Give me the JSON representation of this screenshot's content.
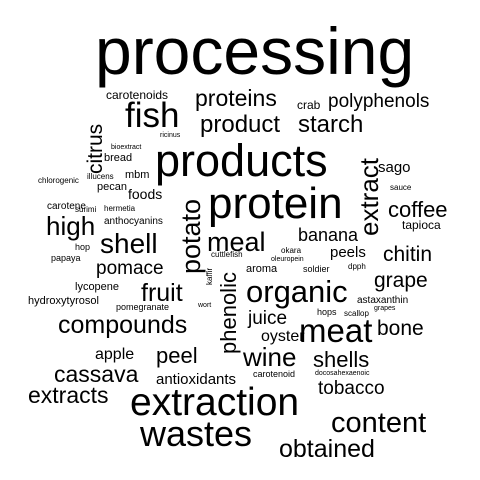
{
  "cloud": {
    "words": {
      "processing": "processing",
      "products": "products",
      "protein": "protein",
      "extraction": "extraction",
      "wastes": "wastes",
      "fish": "fish",
      "meat": "meat",
      "organic": "organic",
      "content": "content",
      "compounds": "compounds",
      "product": "product",
      "proteins": "proteins",
      "starch": "starch",
      "polyphenols": "polyphenols",
      "shell": "shell",
      "meal": "meal",
      "potato": "potato",
      "extract": "extract",
      "phenolic": "phenolic",
      "obtained": "obtained",
      "high": "high",
      "fruit": "fruit",
      "coffee": "coffee",
      "chitin": "chitin",
      "grape": "grape",
      "cassava": "cassava",
      "extracts": "extracts",
      "wine": "wine",
      "shells": "shells",
      "bone": "bone",
      "citrus": "citrus",
      "pomace": "pomace",
      "peel": "peel",
      "tobacco": "tobacco",
      "juice": "juice",
      "banana": "banana",
      "oyster": "oyster",
      "apple": "apple",
      "antioxidants": "antioxidants",
      "peels": "peels",
      "sago": "sago",
      "carotenoids": "carotenoids",
      "crab": "crab",
      "foods": "foods",
      "mbm": "mbm",
      "tapioca": "tapioca",
      "bread": "bread",
      "pecan": "pecan",
      "carotene": "carotene",
      "anthocyanins": "anthocyanins",
      "lycopene": "lycopene",
      "hydroxytyrosol": "hydroxytyrosol",
      "pomegranate": "pomegranate",
      "aroma": "aroma",
      "soldier": "soldier",
      "hops": "hops",
      "scallop": "scallop",
      "astaxanthin": "astaxanthin",
      "grapes": "grapes",
      "carotenoid": "carotenoid",
      "docosahexaenoic": "docosahexaenoic",
      "ricinus": "ricinus",
      "bioextract": "bioextract",
      "chlorogenic": "chlorogenic",
      "illucens": "illucens",
      "surimi": "surimi",
      "hermetia": "hermetia",
      "hop": "hop",
      "papaya": "papaya",
      "cuttlefish": "cuttlefish",
      "okara": "okara",
      "oleuropein": "oleuropein",
      "kaffir": "kaffir",
      "wort": "wort",
      "dpph": "dpph",
      "sauce": "sauce"
    }
  }
}
